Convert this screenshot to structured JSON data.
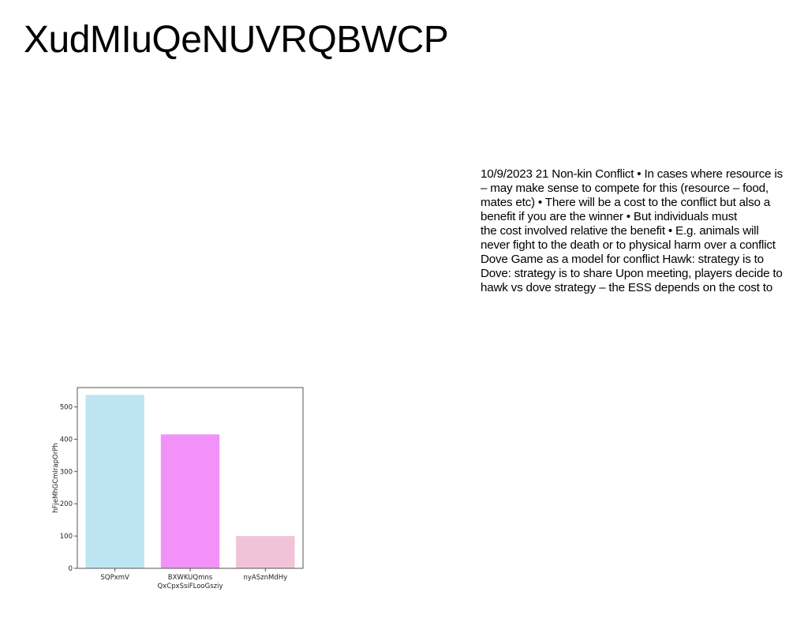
{
  "page": {
    "title": "XudMIuQeNUVRQBWCP"
  },
  "body_text": {
    "lines": [
      "10/9/2023 21 Non-kin Conflict • In cases where resource is",
      "– may make sense to compete for this (resource – food,",
      "mates etc) • There will be a cost to the conflict but also a",
      "benefit if you are the winner • But individuals must",
      "the cost involved relative the benefit • E.g. animals will",
      "never fight to the death or to physical harm over a conflict",
      "Dove Game as a model for conflict Hawk: strategy is to",
      "Dove: strategy is to share Upon meeting, players decide to",
      "hawk vs dove strategy – the ESS depends on the cost to"
    ]
  },
  "chart_data": {
    "type": "bar",
    "categories": [
      "SQPxmV",
      "BXWKUQmns\nQxCpxSsiFLooGsziy",
      "nyASznMdHy"
    ],
    "values": [
      537,
      415,
      100
    ],
    "colors": [
      "#bde4f1",
      "#f292f8",
      "#f1c3d8"
    ],
    "ylabel": "hFjeMhGCmIrapOrPh",
    "xlabel": "",
    "ylim": [
      0,
      560
    ],
    "yticks": [
      0,
      100,
      200,
      300,
      400,
      500
    ],
    "grid": false
  }
}
